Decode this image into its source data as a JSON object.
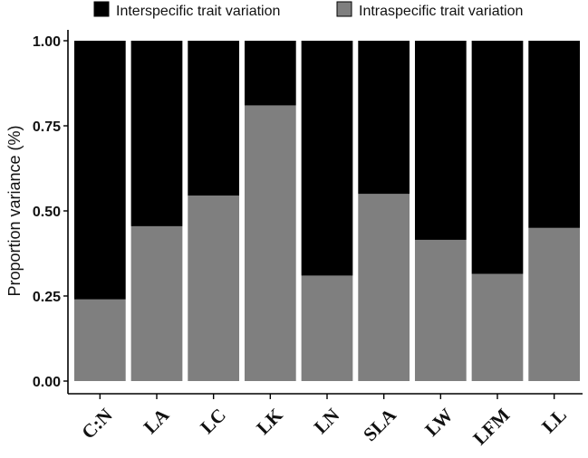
{
  "chart_data": {
    "type": "bar",
    "stacked": true,
    "categories": [
      "C:N",
      "LA",
      "LC",
      "LK",
      "LN",
      "SLA",
      "LW",
      "LFM",
      "LL"
    ],
    "series": [
      {
        "name": "Intraspecific trait variation",
        "color": "#7f7f7f",
        "values": [
          0.24,
          0.455,
          0.545,
          0.81,
          0.31,
          0.55,
          0.415,
          0.315,
          0.45
        ]
      },
      {
        "name": "Interspecific trait variation",
        "color": "#000000",
        "values": [
          0.76,
          0.545,
          0.455,
          0.19,
          0.69,
          0.45,
          0.585,
          0.685,
          0.55
        ]
      }
    ],
    "legend": {
      "position": "top",
      "items": [
        {
          "label": "Interspecific trait variation",
          "color": "#000000"
        },
        {
          "label": "Intraspecific trait variation",
          "color": "#7f7f7f"
        }
      ]
    },
    "title": "",
    "xlabel": "",
    "ylabel": "Proportion variance (%)",
    "ylim": [
      0,
      1
    ],
    "yticks": [
      "0.00",
      "0.25",
      "0.50",
      "0.75",
      "1.00"
    ],
    "grid": false
  }
}
